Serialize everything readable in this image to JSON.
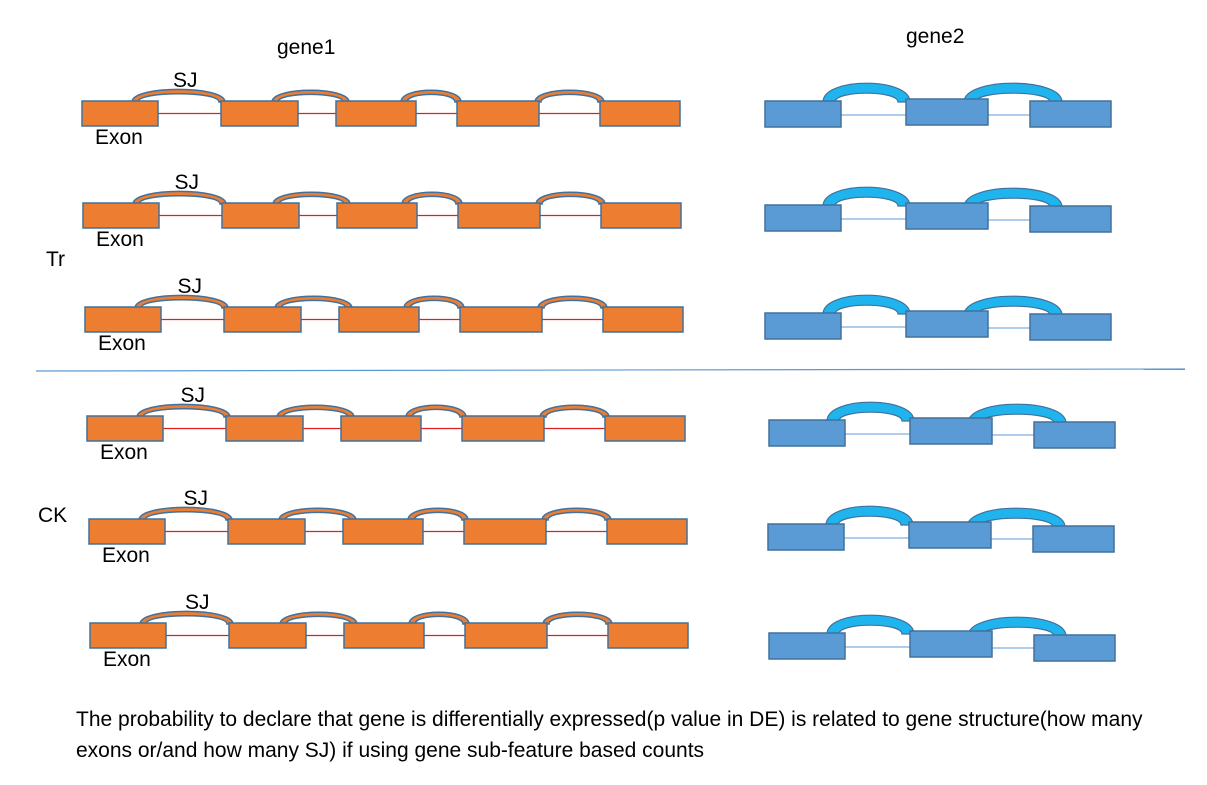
{
  "labels": {
    "gene1": "gene1",
    "gene2": "gene2",
    "tr": "Tr",
    "ck": "CK",
    "sj": "SJ",
    "exon": "Exon"
  },
  "caption": "The probability to declare that gene is differentially expressed(p value in DE) is related to gene structure(how many exons or/and how many SJ) if using gene sub-feature based counts",
  "groups": [
    {
      "label": "Tr",
      "replicates": 3
    },
    {
      "label": "CK",
      "replicates": 3
    }
  ],
  "genes": [
    {
      "name": "gene1",
      "exons": 5,
      "splice_junctions": 4
    },
    {
      "name": "gene2",
      "exons": 3,
      "splice_junctions": 2
    }
  ],
  "colors": {
    "gene1_exon_fill": "#ED7D31",
    "gene1_exon_stroke": "#41719C",
    "gene1_intron_line": "#E02020",
    "gene2_exon_fill": "#5B9BD5",
    "gene2_exon_stroke": "#41719C",
    "gene2_sj_fill": "#1FB4EE",
    "gene2_intron_line": "#5B9BD5",
    "divider": "#5B9BD5"
  }
}
